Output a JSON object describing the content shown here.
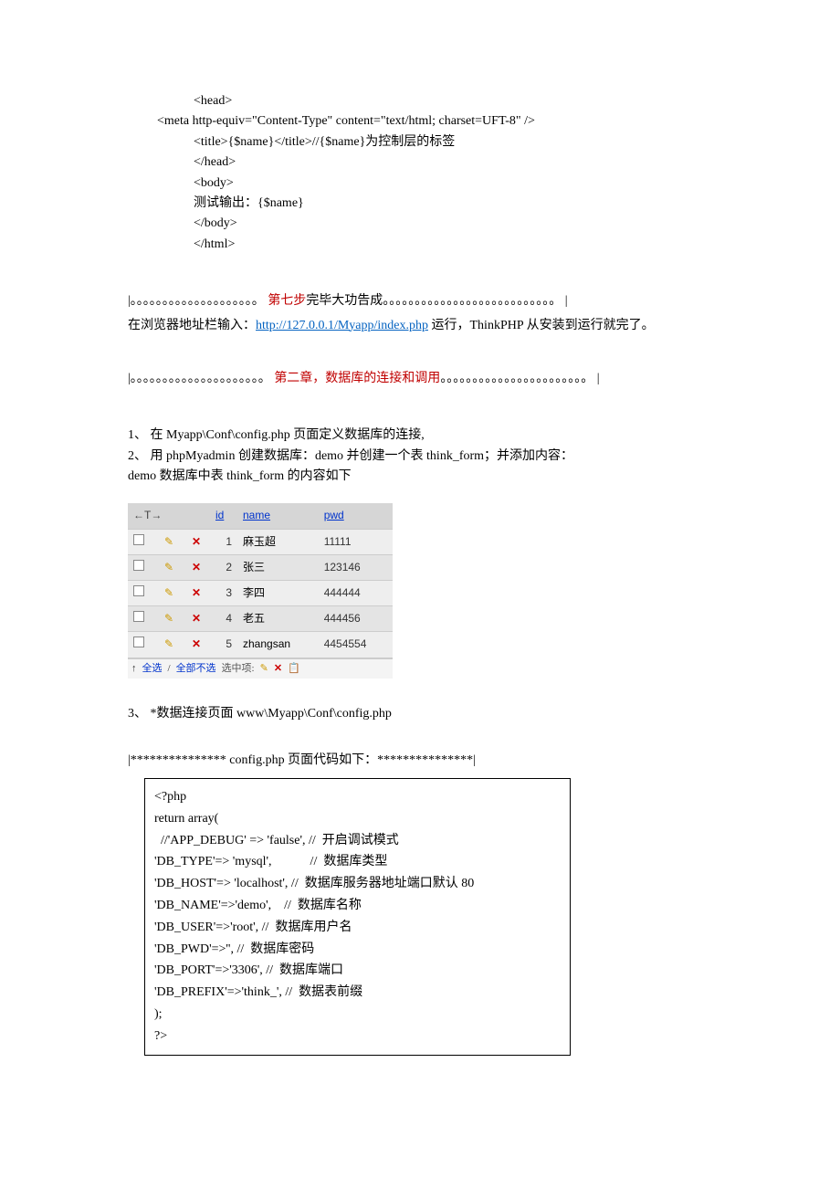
{
  "codeblock1": {
    "l1": "<head>",
    "l2": "<meta http-equiv=\"Content-Type\" content=\"text/html; charset=UFT-8\" />",
    "l3": "<title>{$name}</title>//{$name}为控制层的标签",
    "l4": "</head>",
    "l5": "<body>",
    "l6": "测试输出：{$name}",
    "l7": "</body>",
    "l8": "</html>"
  },
  "step7": {
    "dots_left": "|。。。。。。。。。。。。。。。。。。。。",
    "red": " 第七步",
    "after_red": "完毕大功告成",
    "dots_right": "。。。。。。。。。。。。。。。。。。。。。。。。。。。 |",
    "line2_a": "在浏览器地址栏输入：",
    "link_text": "http://127.0.0.1/Myapp/index.php",
    "line2_b": " 运行，ThinkPHP 从安装到运行就完了。"
  },
  "chapter2": {
    "dots_left": "|。。。。。。。。。。。。。。。。。。。。。",
    "red": " 第二章，数据库的连接和调用",
    "dots_right": "。。。。。。。。。。。。。。。。。。。。。。。 |"
  },
  "paragraph": {
    "p1": "1、 在 Myapp\\Conf\\config.php 页面定义数据库的连接,",
    "p2": "2、 用 phpMyadmin 创建数据库：demo 并创建一个表 think_form；并添加内容：",
    "p3": "demo 数据库中表 think_form 的内容如下"
  },
  "table": {
    "header_arrow": "←T→",
    "col_id": "id",
    "col_name": "name",
    "col_pwd": "pwd",
    "rows": [
      {
        "id": "1",
        "name": "麻玉超",
        "pwd": "11111"
      },
      {
        "id": "2",
        "name": "张三",
        "pwd": "123146"
      },
      {
        "id": "3",
        "name": "李四",
        "pwd": "444444"
      },
      {
        "id": "4",
        "name": "老五",
        "pwd": "444456"
      },
      {
        "id": "5",
        "name": "zhangsan",
        "pwd": "4454554"
      }
    ],
    "foot_arrow": "↑",
    "foot_quanxuan": "全选",
    "foot_sep": "/",
    "foot_buxuan": "全部不选",
    "foot_xuanzhong": "选中项:"
  },
  "p3": "3、 *数据连接页面 www\\Myapp\\Conf\\config.php",
  "config_title": "|*************** config.php 页面代码如下：***************|",
  "config": {
    "l1": "<?php",
    "l2": "return array(",
    "l3": "  //'APP_DEBUG' => 'faulse', //  开启调试模式",
    "l4": "'DB_TYPE'=> 'mysql',            //  数据库类型",
    "l5": "'DB_HOST'=> 'localhost', //  数据库服务器地址端口默认 80",
    "l6": "'DB_NAME'=>'demo',    //  数据库名称",
    "l7": "'DB_USER'=>'root', //  数据库用户名",
    "l8": "'DB_PWD'=>'', //  数据库密码",
    "l9": "'DB_PORT'=>'3306', //  数据库端口",
    "l10": "'DB_PREFIX'=>'think_', //  数据表前缀",
    "l11": ");",
    "l12": "?>"
  }
}
